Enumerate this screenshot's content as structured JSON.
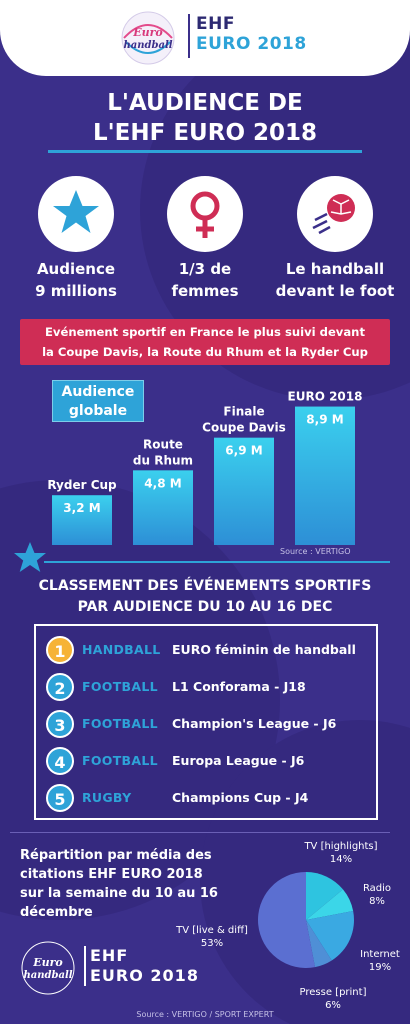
{
  "header": {
    "brand_line1": "EHF",
    "brand_line2": "EURO 2018",
    "logo_text": "Euro handball"
  },
  "title": {
    "line1": "L'AUDIENCE DE",
    "line2": "L'EHF EURO 2018"
  },
  "stats": [
    {
      "icon": "star-icon",
      "label_line1": "Audience",
      "label_line2": "9 millions"
    },
    {
      "icon": "female-symbol-icon",
      "label_line1": "1/3 de",
      "label_line2": "femmes"
    },
    {
      "icon": "handball-ball-icon",
      "label_line1": "Le handball",
      "label_line2": "devant le foot"
    }
  ],
  "banner": {
    "line1": "Evénement sportif en France le plus suivi devant",
    "line2": "la Coupe Davis, la Route du Rhum et la Ryder Cup"
  },
  "chart_label": {
    "line1": "Audience",
    "line2": "globale"
  },
  "chart_data": {
    "type": "bar",
    "categories": [
      "Ryder Cup",
      "Route du Rhum",
      "Finale Coupe Davis",
      "EURO 2018"
    ],
    "values": [
      3.2,
      4.8,
      6.9,
      8.9
    ],
    "data_labels": [
      "3,2 M",
      "4,8 M",
      "6,9 M",
      "8,9 M"
    ],
    "category_lines": [
      [
        "Ryder Cup"
      ],
      [
        "Route",
        "du Rhum"
      ],
      [
        "Finale",
        "Coupe Davis"
      ],
      [
        "EURO 2018"
      ]
    ],
    "unit": "M",
    "colors": {
      "bar_top": "#3bd0ee",
      "bar_bottom": "#2d8fd6"
    }
  },
  "source1": "Source : VERTIGO",
  "ranking": {
    "title_line1": "CLASSEMENT DES ÉVÉNEMENTS SPORTIFS",
    "title_line2": "PAR AUDIENCE DU 10 AU 16 DEC",
    "rows": [
      {
        "rank": "1",
        "sport": "HANDBALL",
        "event": "EURO féminin de handball"
      },
      {
        "rank": "2",
        "sport": "FOOTBALL",
        "event": "L1 Conforama - J18"
      },
      {
        "rank": "3",
        "sport": "FOOTBALL",
        "event": "Champion's League - J6"
      },
      {
        "rank": "4",
        "sport": "FOOTBALL",
        "event": "Europa League - J6"
      },
      {
        "rank": "5",
        "sport": "RUGBY",
        "event": "Champions Cup - J4"
      }
    ]
  },
  "media": {
    "text_lines": [
      "Répartition par média des",
      "citations EHF EURO 2018",
      "sur la semaine du 10 au 16",
      "décembre"
    ]
  },
  "pie": {
    "slices": [
      {
        "name": "TV [highlights]",
        "value": 14,
        "label": "14%",
        "color": "#2ec4e0"
      },
      {
        "name": "Radio",
        "value": 8,
        "label": "8%",
        "color": "#3bd6e8"
      },
      {
        "name": "Internet",
        "value": 19,
        "label": "19%",
        "color": "#3aa9e2"
      },
      {
        "name": "Presse [print]",
        "value": 6,
        "label": "6%",
        "color": "#4f8fd6"
      },
      {
        "name": "TV [live & diff]",
        "value": 53,
        "label": "53%",
        "color": "#5b6fd1"
      }
    ]
  },
  "footer": {
    "brand_line1": "EHF",
    "brand_line2": "EURO 2018"
  },
  "source2": "Source : VERTIGO / SPORT EXPERT",
  "colors": {
    "background": "#3b2f8a",
    "accent_blue": "#2ea3d8",
    "banner_red": "#cf2d55",
    "gold": "#f6b336"
  }
}
